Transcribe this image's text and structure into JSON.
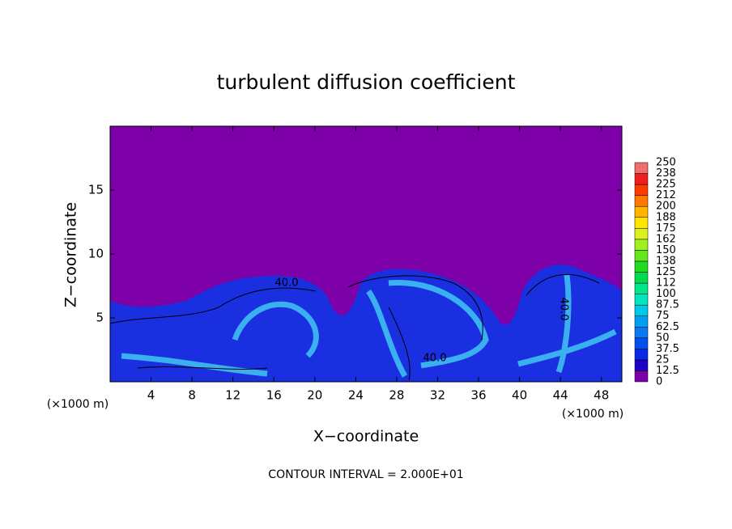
{
  "chart_data": {
    "type": "contour",
    "title": "turbulent diffusion coefficient",
    "xlabel": "X−coordinate",
    "ylabel": "Z−coordinate",
    "xunit": "(×1000 m)",
    "yunit": "(×1000 m)",
    "footer": "CONTOUR INTERVAL = 2.000E+01",
    "xlim": [
      0,
      50
    ],
    "ylim": [
      0,
      20
    ],
    "xticks": [
      4,
      8,
      12,
      16,
      20,
      24,
      28,
      32,
      36,
      40,
      44,
      48
    ],
    "yticks": [
      5,
      10,
      15
    ],
    "contour_labels": [
      "40.0",
      "40.0",
      "40.0"
    ],
    "colorbar": {
      "ticks": [
        0,
        12.5,
        25,
        37.5,
        50,
        62.5,
        75,
        87.5,
        100,
        112,
        125,
        138,
        150,
        162,
        175,
        188,
        200,
        212,
        225,
        238,
        250
      ],
      "colors": [
        "#7a00a8",
        "#1c00c8",
        "#0a28e6",
        "#0050f0",
        "#0a78f0",
        "#00a0f0",
        "#00c8e6",
        "#00e6c0",
        "#00e68c",
        "#00dc50",
        "#20dc20",
        "#64e61e",
        "#a0f01e",
        "#dcf01e",
        "#ffe600",
        "#ffb400",
        "#ff7800",
        "#ff3c00",
        "#f01e1e",
        "#f06e6e"
      ]
    }
  }
}
